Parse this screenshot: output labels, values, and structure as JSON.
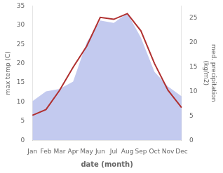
{
  "chart_data": {
    "type": "line",
    "xlabel": "date (month)",
    "ylabel": "max temp (C)",
    "y2label": "med. precipitation\n(kg/m2)",
    "categories": [
      "Jan",
      "Feb",
      "Mar",
      "Apr",
      "May",
      "Jun",
      "Jul",
      "Aug",
      "Sep",
      "Oct",
      "Nov",
      "Dec"
    ],
    "series": [
      {
        "type": "area",
        "axis": "y2",
        "color": "#aab4e8",
        "values": [
          8.0,
          10.0,
          10.5,
          12.0,
          20.0,
          24.5,
          24.0,
          26.0,
          21.0,
          14.0,
          11.0,
          9.0
        ]
      },
      {
        "type": "line",
        "color": "#b03030",
        "values": [
          6.5,
          8.0,
          13.0,
          19.0,
          24.5,
          32.0,
          31.5,
          33.0,
          28.5,
          20.0,
          13.0,
          8.5
        ]
      }
    ],
    "ylim": [
      0,
      35
    ],
    "yticks": [
      0,
      5,
      10,
      15,
      20,
      25,
      30,
      35
    ],
    "y2lim": [
      0,
      27.5
    ],
    "y2ticks": [
      0,
      5,
      10,
      15,
      20,
      25
    ],
    "grid": false
  }
}
